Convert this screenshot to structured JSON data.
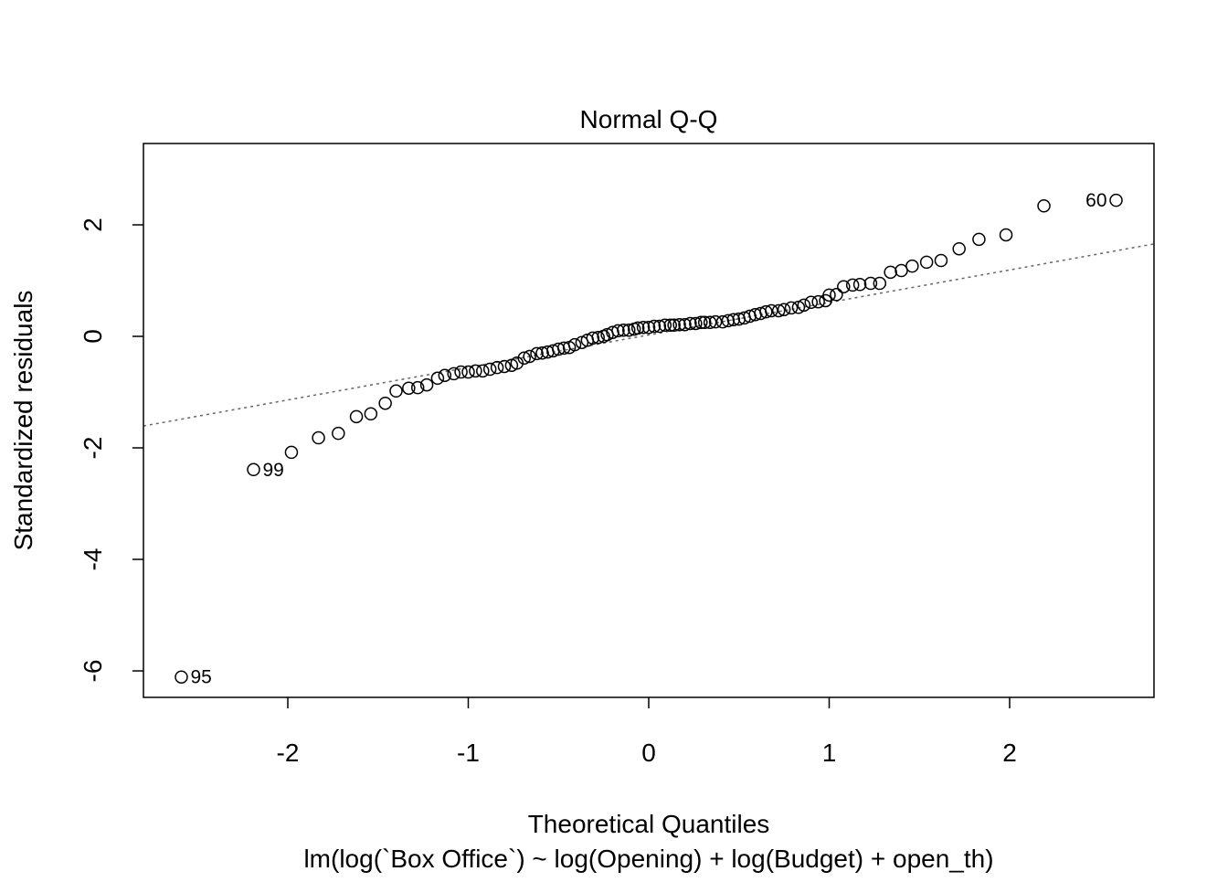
{
  "chart_data": {
    "type": "scatter",
    "title": "Normal Q-Q",
    "x_label": "Theoretical Quantiles",
    "subtitle": "lm(log(`Box Office`) ~ log(Opening) + log(Budget) + open_th)",
    "y_label": "Standardized residuals",
    "x": [
      -2.59,
      -2.19,
      -1.98,
      -1.83,
      -1.72,
      -1.62,
      -1.54,
      -1.46,
      -1.4,
      -1.33,
      -1.28,
      -1.23,
      -1.17,
      -1.13,
      -1.08,
      -1.04,
      -1.0,
      -0.96,
      -0.92,
      -0.88,
      -0.84,
      -0.8,
      -0.76,
      -0.73,
      -0.69,
      -0.66,
      -0.62,
      -0.59,
      -0.56,
      -0.53,
      -0.5,
      -0.47,
      -0.44,
      -0.41,
      -0.37,
      -0.34,
      -0.31,
      -0.28,
      -0.25,
      -0.23,
      -0.2,
      -0.17,
      -0.14,
      -0.11,
      -0.08,
      -0.06,
      -0.03,
      0,
      0.03,
      0.06,
      0.09,
      0.12,
      0.14,
      0.17,
      0.2,
      0.23,
      0.26,
      0.29,
      0.31,
      0.34,
      0.37,
      0.41,
      0.44,
      0.47,
      0.5,
      0.53,
      0.56,
      0.59,
      0.62,
      0.65,
      0.68,
      0.72,
      0.75,
      0.79,
      0.83,
      0.86,
      0.9,
      0.94,
      0.98,
      1.0,
      1.04,
      1.08,
      1.13,
      1.17,
      1.23,
      1.28,
      1.34,
      1.4,
      1.46,
      1.54,
      1.62,
      1.72,
      1.83,
      1.98,
      2.19,
      2.59
    ],
    "values": [
      -6.11,
      -2.39,
      -2.08,
      -1.82,
      -1.74,
      -1.44,
      -1.39,
      -1.2,
      -0.98,
      -0.93,
      -0.92,
      -0.87,
      -0.75,
      -0.7,
      -0.67,
      -0.64,
      -0.64,
      -0.62,
      -0.62,
      -0.59,
      -0.56,
      -0.54,
      -0.52,
      -0.48,
      -0.39,
      -0.36,
      -0.31,
      -0.3,
      -0.28,
      -0.26,
      -0.23,
      -0.21,
      -0.2,
      -0.15,
      -0.11,
      -0.07,
      -0.03,
      -0.02,
      0,
      0.03,
      0.07,
      0.1,
      0.11,
      0.11,
      0.13,
      0.15,
      0.16,
      0.16,
      0.18,
      0.18,
      0.2,
      0.2,
      0.2,
      0.21,
      0.21,
      0.23,
      0.23,
      0.25,
      0.25,
      0.25,
      0.26,
      0.26,
      0.28,
      0.3,
      0.31,
      0.33,
      0.36,
      0.39,
      0.41,
      0.44,
      0.46,
      0.46,
      0.48,
      0.51,
      0.52,
      0.56,
      0.61,
      0.62,
      0.64,
      0.74,
      0.75,
      0.89,
      0.92,
      0.93,
      0.95,
      0.95,
      1.15,
      1.18,
      1.26,
      1.33,
      1.36,
      1.57,
      1.74,
      1.82,
      2.34,
      2.44
    ],
    "point_labels": [
      {
        "index": 0,
        "label": "95"
      },
      {
        "index": 1,
        "label": "99"
      },
      {
        "index": 95,
        "label": "60"
      }
    ],
    "reference_line": {
      "slope": 0.583,
      "intercept": 0.025
    },
    "xlim": [
      -2.8,
      2.8
    ],
    "ylim": [
      -6.475,
      3.459
    ],
    "xticks": [
      -2,
      -1,
      0,
      1,
      2
    ],
    "yticks": [
      -6,
      -4,
      -2,
      0,
      2
    ]
  }
}
